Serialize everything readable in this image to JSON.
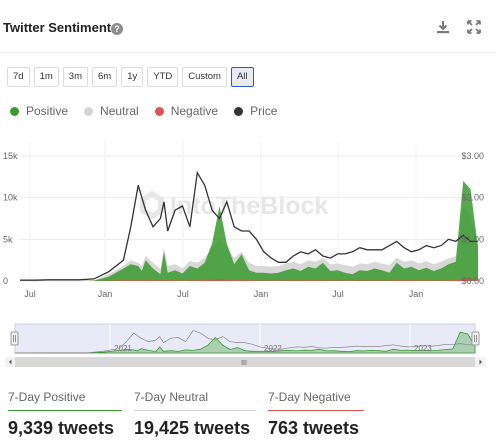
{
  "widget": {
    "title": "Twitter Sentiment",
    "help_glyph": "?"
  },
  "toolbar": {
    "download_icon": "download-icon",
    "expand_icon": "fullscreen-icon"
  },
  "range_buttons": [
    "7d",
    "1m",
    "3m",
    "6m",
    "1y",
    "YTD",
    "Custom",
    "All"
  ],
  "active_range": "All",
  "legend": [
    {
      "name": "Positive",
      "color": "#3a9a2e"
    },
    {
      "name": "Neutral",
      "color": "#d4d4d4"
    },
    {
      "name": "Negative",
      "color": "#d9534f"
    },
    {
      "name": "Price",
      "color": "#333333"
    }
  ],
  "watermark": "IntoTheBlock",
  "navigator": {
    "year_labels": [
      "2021",
      "2022",
      "2023"
    ],
    "scroll_glyph": "III"
  },
  "chart_data": {
    "type": "area",
    "x_tick_labels": [
      "Jul",
      "Jan",
      "Jul",
      "Jan",
      "Jul",
      "Jan"
    ],
    "left_axis": {
      "tick_labels": [
        "15k",
        "10k",
        "5k",
        "0"
      ],
      "range": [
        0,
        15000
      ]
    },
    "right_axis": {
      "tick_labels": [
        "$3.00",
        "$2.00",
        "$1.00",
        "$0.00"
      ],
      "range": [
        0,
        3.0
      ]
    },
    "x": [
      0,
      2,
      4,
      6,
      8,
      10,
      12,
      14,
      15,
      16,
      16.5,
      17,
      18,
      19,
      19.5,
      20,
      21,
      22,
      23,
      24,
      25,
      26,
      27,
      28,
      29,
      30,
      31,
      32,
      33,
      34,
      35,
      36,
      37,
      38,
      39,
      40,
      41,
      42,
      43,
      44,
      45,
      46,
      47,
      48,
      49,
      50,
      51,
      52,
      53,
      54,
      55,
      56,
      57,
      58,
      59,
      60,
      61,
      62
    ],
    "series": [
      {
        "name": "Price",
        "axis": "right",
        "values": [
          0.02,
          0.02,
          0.03,
          0.03,
          0.03,
          0.05,
          0.22,
          0.5,
          1.3,
          2.3,
          2.0,
          1.7,
          1.3,
          1.5,
          1.9,
          1.2,
          1.7,
          1.8,
          1.3,
          2.6,
          2.3,
          1.7,
          1.5,
          1.9,
          1.3,
          1.2,
          1.2,
          1.0,
          0.7,
          0.55,
          0.45,
          0.45,
          0.6,
          0.7,
          0.65,
          0.75,
          0.6,
          0.55,
          0.65,
          0.65,
          0.7,
          0.8,
          0.75,
          0.75,
          0.75,
          0.85,
          0.95,
          0.8,
          0.7,
          0.75,
          0.85,
          0.8,
          0.85,
          1.0,
          0.95,
          1.1,
          0.95,
          0.95
        ]
      },
      {
        "name": "Positive",
        "axis": "left",
        "values": [
          0,
          0,
          0,
          0,
          0,
          50,
          500,
          1500,
          2000,
          1800,
          1200,
          2500,
          1500,
          800,
          3500,
          1000,
          1300,
          900,
          1800,
          1500,
          2200,
          4500,
          9000,
          4500,
          2000,
          3200,
          1300,
          1000,
          1000,
          900,
          1000,
          1300,
          1500,
          1200,
          1700,
          1500,
          2200,
          1200,
          1300,
          1000,
          800,
          1300,
          1200,
          1500,
          1300,
          1000,
          2200,
          1500,
          1700,
          1300,
          1600,
          1200,
          1500,
          2000,
          2300,
          12000,
          11000,
          4000
        ]
      },
      {
        "name": "Neutral",
        "axis": "left",
        "values": [
          0,
          0,
          0,
          0,
          0,
          100,
          800,
          1800,
          2500,
          2200,
          1800,
          3000,
          2200,
          1500,
          4000,
          1800,
          2000,
          1500,
          2400,
          2200,
          2800,
          4000,
          5000,
          4000,
          2800,
          3500,
          2200,
          1800,
          1800,
          1700,
          1800,
          2100,
          2300,
          2000,
          2500,
          2300,
          2800,
          2000,
          2100,
          1900,
          1700,
          2100,
          2000,
          2300,
          2100,
          1900,
          2800,
          2300,
          2500,
          2100,
          2400,
          2000,
          2300,
          2700,
          3000,
          9000,
          8000,
          4500
        ]
      },
      {
        "name": "Negative",
        "axis": "left",
        "values": [
          0,
          0,
          0,
          0,
          0,
          10,
          40,
          80,
          100,
          90,
          70,
          120,
          90,
          60,
          150,
          70,
          80,
          60,
          100,
          90,
          110,
          150,
          250,
          150,
          100,
          120,
          70,
          60,
          60,
          55,
          60,
          70,
          80,
          70,
          85,
          80,
          100,
          70,
          75,
          65,
          55,
          70,
          65,
          75,
          70,
          60,
          100,
          80,
          85,
          70,
          80,
          65,
          75,
          90,
          100,
          350,
          300,
          150
        ]
      }
    ]
  },
  "stats": [
    {
      "label": "7-Day Positive",
      "value": "9,339 tweets",
      "color": "#3a9a2e"
    },
    {
      "label": "7-Day Neutral",
      "value": "19,425 tweets",
      "color": "#d4d4d4"
    },
    {
      "label": "7-Day Negative",
      "value": "763 tweets",
      "color": "#d9534f"
    }
  ]
}
